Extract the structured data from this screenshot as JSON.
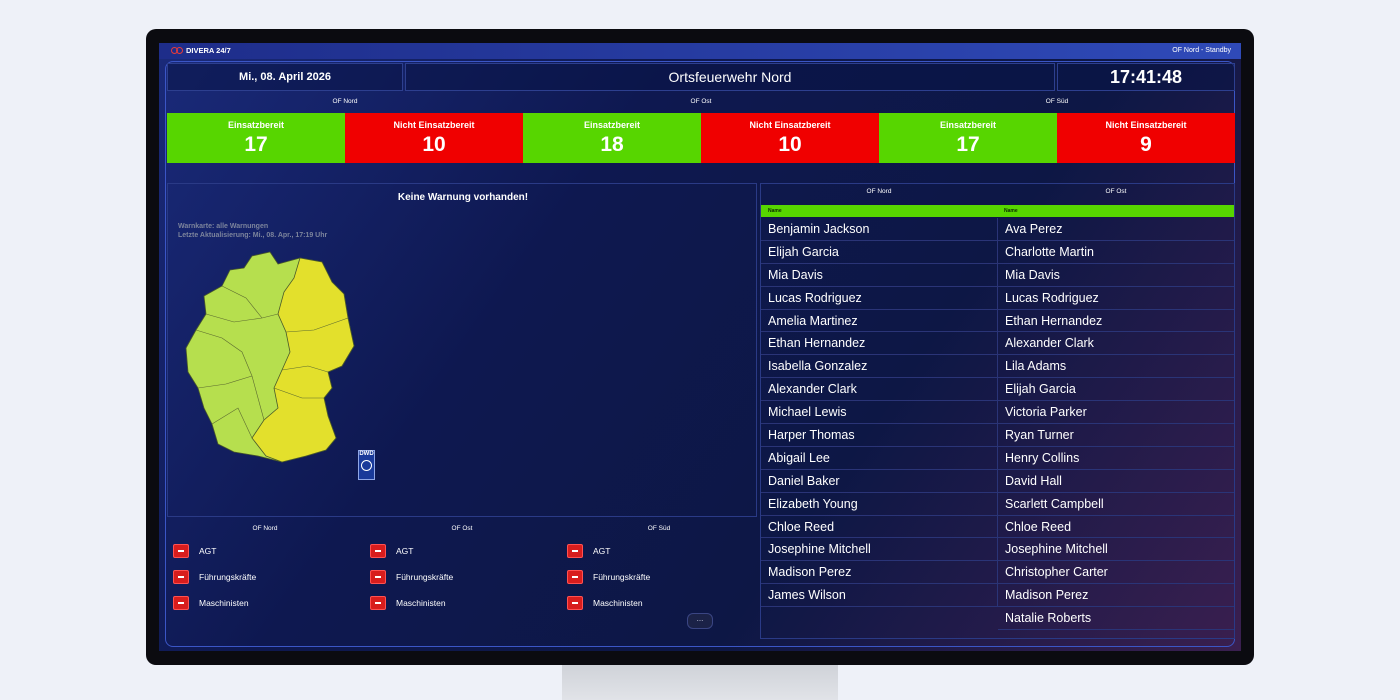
{
  "topbar": {
    "brand": "DIVERA 24/7",
    "status": "OF Nord - Standby"
  },
  "header": {
    "date": "Mi., 08. April 2026",
    "title": "Ortsfeuerwehr Nord",
    "clock": "17:41:48"
  },
  "colors": {
    "ready": "#57d600",
    "not_ready": "#f00000",
    "badge": "#d81d1d"
  },
  "groups": [
    {
      "label": "OF Nord",
      "ready_label": "Einsatzbereit",
      "ready": "17",
      "not_ready_label": "Nicht Einsatzbereit",
      "not_ready": "10"
    },
    {
      "label": "OF Ost",
      "ready_label": "Einsatzbereit",
      "ready": "18",
      "not_ready_label": "Nicht Einsatzbereit",
      "not_ready": "10"
    },
    {
      "label": "OF Süd",
      "ready_label": "Einsatzbereit",
      "ready": "17",
      "not_ready_label": "Nicht Einsatzbereit",
      "not_ready": "9"
    }
  ],
  "warnings": {
    "title": "Keine Warnung vorhanden!",
    "map_meta_1": "Warnkarte: alle Warnungen",
    "map_meta_2": "Letzte Aktualisierung: Mi., 08. Apr., 17:19 Uhr",
    "badge": "DWD"
  },
  "qualifications": [
    {
      "group": "OF Nord",
      "items": [
        "AGT",
        "Führungskräfte",
        "Maschinisten"
      ]
    },
    {
      "group": "OF Ost",
      "items": [
        "AGT",
        "Führungskräfte",
        "Maschinisten"
      ]
    },
    {
      "group": "OF Süd",
      "items": [
        "AGT",
        "Führungskräfte",
        "Maschinisten"
      ]
    }
  ],
  "more_label": "...",
  "roster": {
    "columns": [
      {
        "group": "OF Nord",
        "name_header": "Name",
        "names": [
          "Benjamin Jackson",
          "Elijah Garcia",
          "Mia Davis",
          "Lucas Rodriguez",
          "Amelia Martinez",
          "Ethan Hernandez",
          "Isabella Gonzalez",
          "Alexander Clark",
          "Michael Lewis",
          "Harper Thomas",
          "Abigail Lee",
          "Daniel Baker",
          "Elizabeth Young",
          "Chloe Reed",
          "Josephine Mitchell",
          "Madison Perez",
          "James Wilson"
        ]
      },
      {
        "group": "OF Ost",
        "name_header": "Name",
        "names": [
          "Ava Perez",
          "Charlotte Martin",
          "Mia Davis",
          "Lucas Rodriguez",
          "Ethan Hernandez",
          "Alexander Clark",
          "Lila Adams",
          "Elijah Garcia",
          "Victoria Parker",
          "Ryan Turner",
          "Henry Collins",
          "David Hall",
          "Scarlett Campbell",
          "Chloe Reed",
          "Josephine Mitchell",
          "Christopher Carter",
          "Madison Perez",
          "Natalie Roberts"
        ]
      }
    ]
  }
}
